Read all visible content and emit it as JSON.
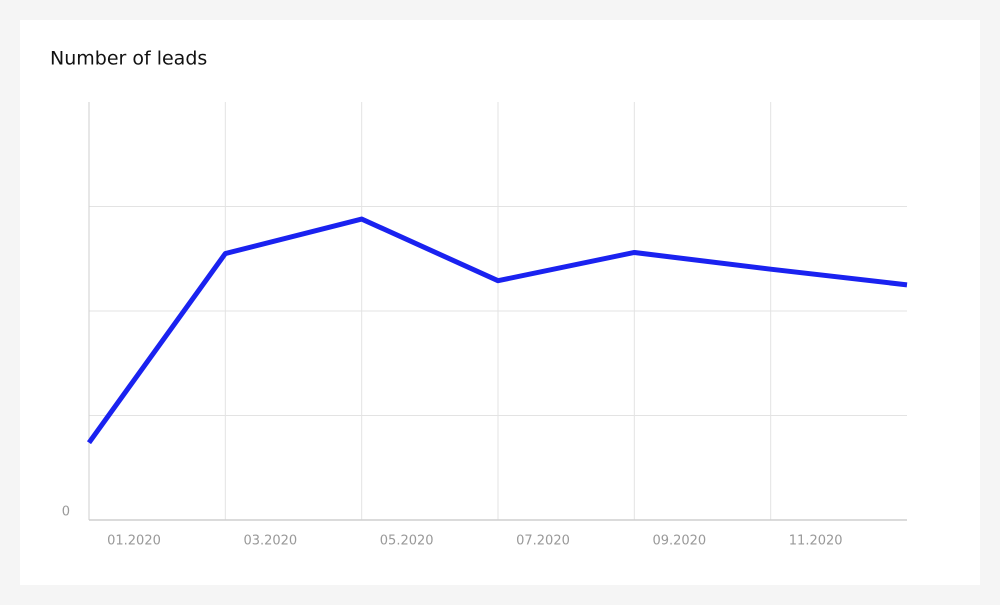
{
  "chart_data": {
    "type": "line",
    "title": "Number of leads",
    "categories": [
      "01.2020",
      "03.2020",
      "05.2020",
      "07.2020",
      "09.2020",
      "11.2020",
      null
    ],
    "series": [
      {
        "color": "#1a22f0",
        "values": [
          0.74,
          2.55,
          2.88,
          2.29,
          2.56,
          2.4,
          2.25
        ]
      }
    ],
    "ylim": [
      0,
      4
    ],
    "yticks": [
      0
    ],
    "ygrid": [
      1,
      2,
      3
    ],
    "grid": true
  }
}
